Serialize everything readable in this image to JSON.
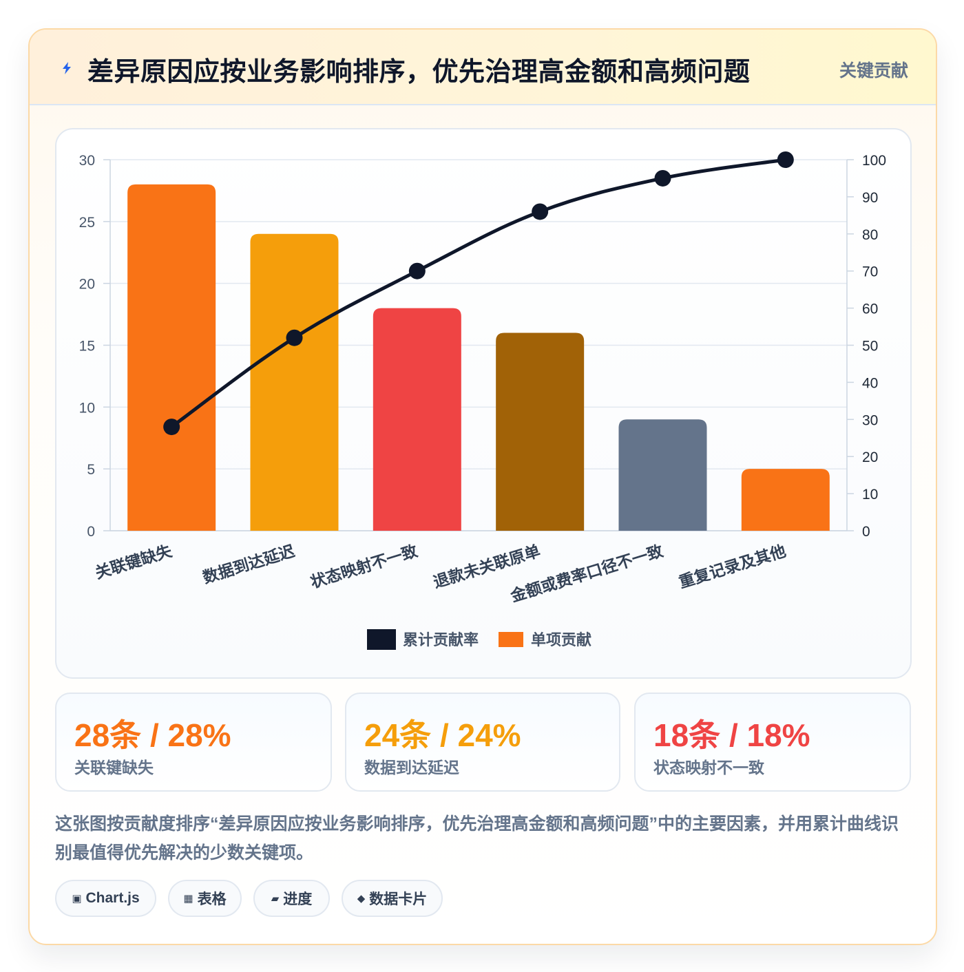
{
  "header": {
    "title": "差异原因应按业务影响排序，优先治理高金额和高频问题",
    "badge": "关键贡献"
  },
  "chart_data": {
    "type": "bar",
    "categories": [
      "关联键缺失",
      "数据到达延迟",
      "状态映射不一致",
      "退款未关联原单",
      "金额或费率口径不一致",
      "重复记录及其他"
    ],
    "series": [
      {
        "name": "单项贡献",
        "type": "bar",
        "axis": "left",
        "values": [
          28,
          24,
          18,
          16,
          9,
          5
        ]
      },
      {
        "name": "累计贡献率",
        "type": "line",
        "axis": "right",
        "values": [
          28,
          52,
          70,
          86,
          95,
          100
        ]
      }
    ],
    "bar_colors": [
      "#f97316",
      "#f59e0b",
      "#ef4444",
      "#a16207",
      "#64748b",
      "#f97316"
    ],
    "line_color": "#0f172a",
    "ylim_left": [
      0,
      30
    ],
    "yticks_left": [
      0,
      5,
      10,
      15,
      20,
      25,
      30
    ],
    "ylim_right": [
      0,
      100
    ],
    "yticks_right": [
      0,
      10,
      20,
      30,
      40,
      50,
      60,
      70,
      80,
      90,
      100
    ],
    "legend": [
      "累计贡献率",
      "单项贡献"
    ],
    "legend_position": "bottom",
    "grid": true
  },
  "stats": [
    {
      "value": "28条 / 28%",
      "label": "关联键缺失",
      "color": "#f97316"
    },
    {
      "value": "24条 / 24%",
      "label": "数据到达延迟",
      "color": "#f59e0b"
    },
    {
      "value": "18条 / 18%",
      "label": "状态映射不一致",
      "color": "#ef4444"
    }
  ],
  "description": "这张图按贡献度排序“差异原因应按业务影响排序，优先治理高金额和高频问题”中的主要因素，并用累计曲线识别最值得优先解决的少数关键项。",
  "tags": [
    {
      "icon": "▣",
      "label": "Chart.js"
    },
    {
      "icon": "▦",
      "label": "表格"
    },
    {
      "icon": "▰",
      "label": "进度"
    },
    {
      "icon": "◆",
      "label": "数据卡片"
    }
  ]
}
